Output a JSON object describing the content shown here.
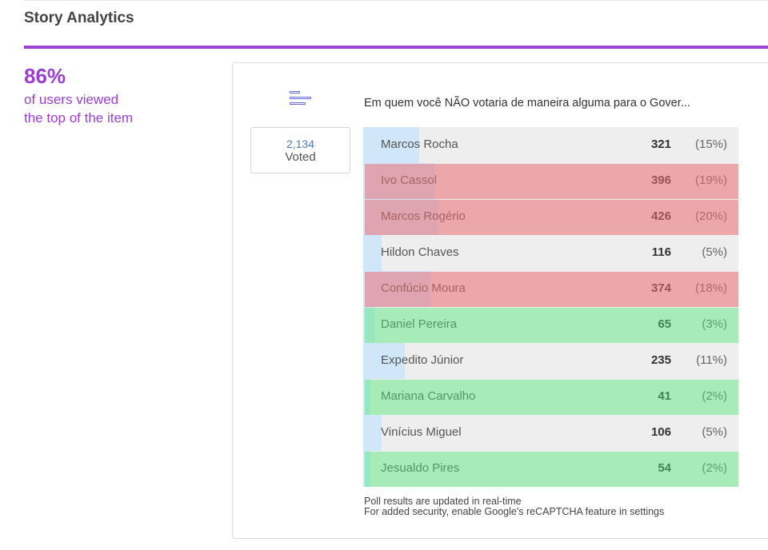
{
  "header": {
    "title": "Story Analytics"
  },
  "stats": {
    "percent": "86%",
    "line1": "of users viewed",
    "line2": "the top of the item"
  },
  "poll": {
    "icon": "bar-chart-icon",
    "votes_count": "2,134",
    "votes_label": "Voted",
    "question": "Em quem você NÃO votaria de maneira alguma para o Gover...",
    "options": [
      {
        "name": "Marcos Rocha",
        "count": "321",
        "percent": "(15%)",
        "share": 0.15,
        "highlight": "none"
      },
      {
        "name": "Ivo Cassol",
        "count": "396",
        "percent": "(19%)",
        "share": 0.19,
        "highlight": "red"
      },
      {
        "name": "Marcos Rogério",
        "count": "426",
        "percent": "(20%)",
        "share": 0.2,
        "highlight": "red"
      },
      {
        "name": "Hildon Chaves",
        "count": "116",
        "percent": "(5%)",
        "share": 0.05,
        "highlight": "none"
      },
      {
        "name": "Confúcio Moura",
        "count": "374",
        "percent": "(18%)",
        "share": 0.18,
        "highlight": "red"
      },
      {
        "name": "Daniel Pereira",
        "count": "65",
        "percent": "(3%)",
        "share": 0.03,
        "highlight": "green"
      },
      {
        "name": "Expedito Júnior",
        "count": "235",
        "percent": "(11%)",
        "share": 0.11,
        "highlight": "none"
      },
      {
        "name": "Mariana Carvalho",
        "count": "41",
        "percent": "(2%)",
        "share": 0.02,
        "highlight": "green"
      },
      {
        "name": "Vinícius Miguel",
        "count": "106",
        "percent": "(5%)",
        "share": 0.05,
        "highlight": "none"
      },
      {
        "name": "Jesualdo Pires",
        "count": "54",
        "percent": "(2%)",
        "share": 0.02,
        "highlight": "green"
      }
    ],
    "footer_line1": "Poll results are updated in real-time",
    "footer_line2": "For added security, enable Google's reCAPTCHA feature in settings"
  },
  "colors": {
    "accent": "#9d44d6",
    "bar": "#cfe7f8",
    "row": "#eeeeee",
    "highlight_red": "#eb6e73",
    "highlight_green": "#50e678"
  }
}
